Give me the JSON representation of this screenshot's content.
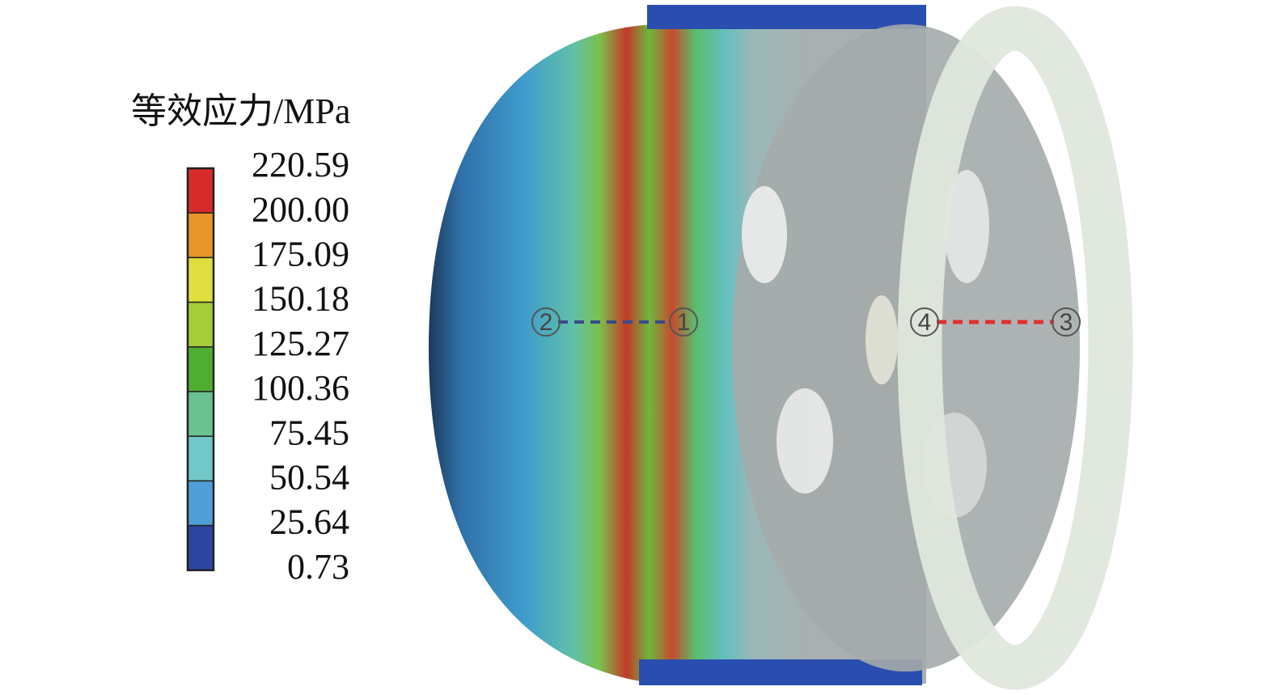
{
  "legend": {
    "title": "等效应力/MPa",
    "labels": [
      "220.59",
      "200.00",
      "175.09",
      "150.18",
      "125.27",
      "100.36",
      "75.45",
      "50.54",
      "25.64",
      "0.73"
    ],
    "colors": [
      "#d62b2b",
      "#e8952c",
      "#dede3e",
      "#a6cc3a",
      "#4fae32",
      "#6ac090",
      "#72c8c8",
      "#4f9ed8",
      "#2c46a0"
    ]
  },
  "points": [
    "1",
    "2",
    "3",
    "4"
  ]
}
